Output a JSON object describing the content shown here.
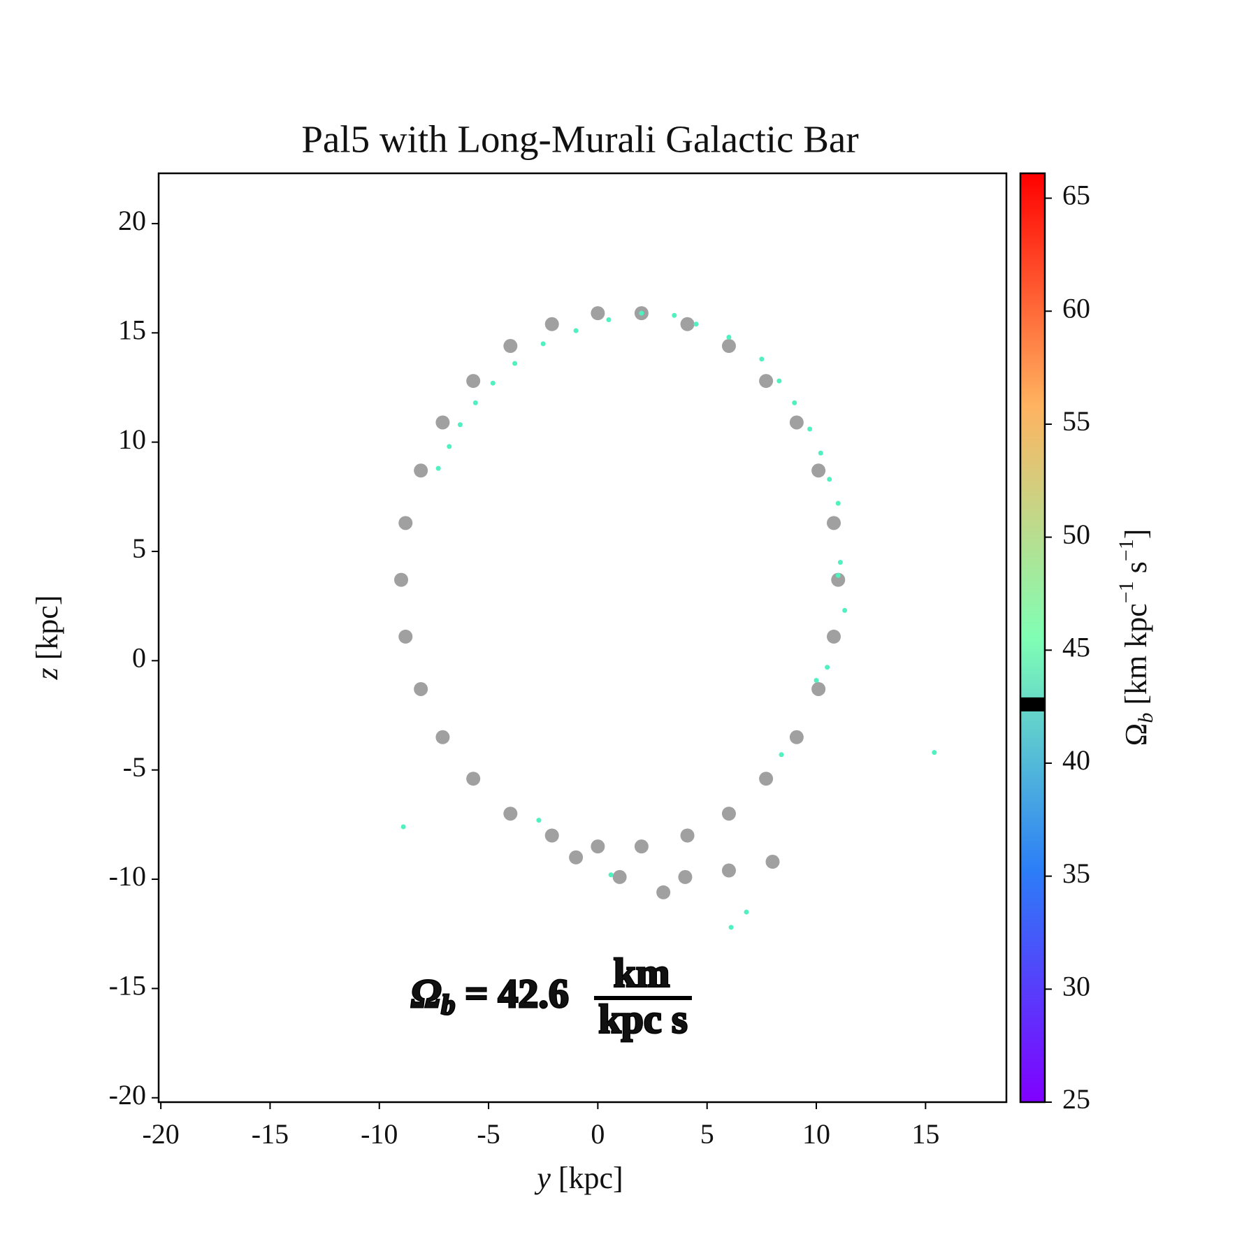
{
  "chart_data": {
    "type": "scatter",
    "title": "Pal5 with Long-Murali Galactic Bar",
    "xlabel": {
      "var": "y",
      "unit": "[kpc]"
    },
    "ylabel": {
      "var": "z",
      "unit": "[kpc]"
    },
    "xlim": [
      -20.1,
      18.7
    ],
    "ylim": [
      -20.2,
      22.3
    ],
    "xticks": [
      -20,
      -15,
      -10,
      -5,
      0,
      5,
      10,
      15
    ],
    "yticks": [
      -20,
      -15,
      -10,
      -5,
      0,
      5,
      10,
      15,
      20
    ],
    "series": [
      {
        "color": "#808080",
        "x": [
          11,
          10.8,
          10.1,
          9.1,
          7.7,
          6,
          4.1,
          2,
          0,
          -2.1,
          -4,
          -5.7,
          -7.1,
          -8.1,
          -8.8,
          -9,
          -8.8,
          -8.1,
          -7.1,
          -5.7,
          -4,
          -2.1,
          0,
          2,
          4.1,
          6,
          7.7,
          9.1,
          10.1,
          10.8,
          -1,
          1,
          3,
          4,
          6,
          8
        ],
        "values": [
          3.7,
          6.3,
          8.7,
          10.9,
          12.8,
          14.4,
          15.4,
          15.9,
          15.9,
          15.4,
          14.4,
          12.8,
          10.9,
          8.7,
          6.3,
          3.7,
          1.1,
          -1.3,
          -3.5,
          -5.4,
          -7,
          -8,
          -8.5,
          -8.5,
          -8,
          -7,
          -5.4,
          -3.5,
          -1.3,
          1.1,
          -9,
          -9.9,
          -10.6,
          -9.9,
          -9.6,
          -9.2
        ]
      },
      {
        "color": "#50f0c0",
        "x": [
          -7.3,
          -6.8,
          -6.3,
          -5.6,
          -4.8,
          -3.8,
          -2.5,
          -1,
          0.5,
          2,
          3.5,
          4.5,
          6,
          7.5,
          8.3,
          9,
          9.7,
          10.2,
          10.6,
          11,
          11.1,
          11,
          11.3,
          10.5,
          10,
          8.4,
          15.4,
          -8.9,
          -2.7,
          0.6,
          6.8,
          6.1
        ],
        "values": [
          8.8,
          9.8,
          10.8,
          11.8,
          12.7,
          13.6,
          14.5,
          15.1,
          15.6,
          15.9,
          15.8,
          15.4,
          14.8,
          13.8,
          12.8,
          11.8,
          10.6,
          9.5,
          8.3,
          7.2,
          4.5,
          3.9,
          2.3,
          -0.3,
          -0.9,
          -4.3,
          -4.2,
          -7.6,
          -7.3,
          -9.8,
          -11.5,
          -12.2
        ]
      }
    ],
    "colorbar": {
      "lim": [
        25,
        66.1
      ],
      "ticks": [
        25,
        30,
        35,
        40,
        45,
        50,
        55,
        60,
        65
      ],
      "colors": [
        "#8000ff",
        "#2c7ef7",
        "#80ffb4",
        "#ffb360",
        "#ff0000"
      ],
      "label": [
        {
          "text": "Ω"
        },
        {
          "text": "b",
          "sub": true
        },
        {
          "text": " [km kpc"
        },
        {
          "text": "−1",
          "sup": true
        },
        {
          "text": " s"
        },
        {
          "text": "−1",
          "sup": true
        },
        {
          "text": "]"
        }
      ]
    },
    "annotation": {
      "symbol": "Ω",
      "subscript": "b",
      "relation": "=",
      "value": 42.6,
      "numerator": "km",
      "denominator": "kpc s",
      "color": "#50f0c0"
    }
  }
}
